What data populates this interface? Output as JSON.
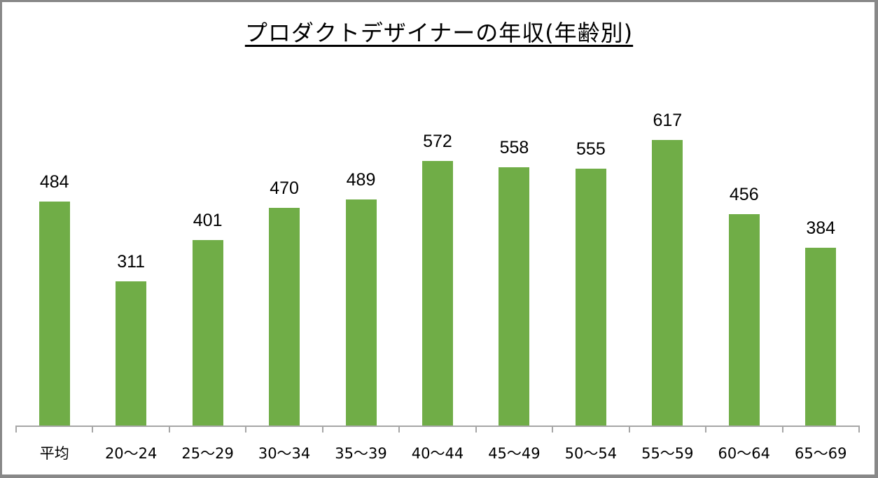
{
  "chart_data": {
    "type": "bar",
    "title": "プロダクトデザイナーの年収(年齢別)",
    "xlabel": "",
    "ylabel": "",
    "categories": [
      "平均",
      "20〜24",
      "25〜29",
      "30〜34",
      "35〜39",
      "40〜44",
      "45〜49",
      "50〜54",
      "55〜59",
      "60〜64",
      "65〜69"
    ],
    "values": [
      484,
      311,
      401,
      470,
      489,
      572,
      558,
      555,
      617,
      456,
      384
    ],
    "bar_color": "#70ad47",
    "ylim": [
      0,
      700
    ],
    "grid": false,
    "legend": null,
    "data_labels": true
  }
}
